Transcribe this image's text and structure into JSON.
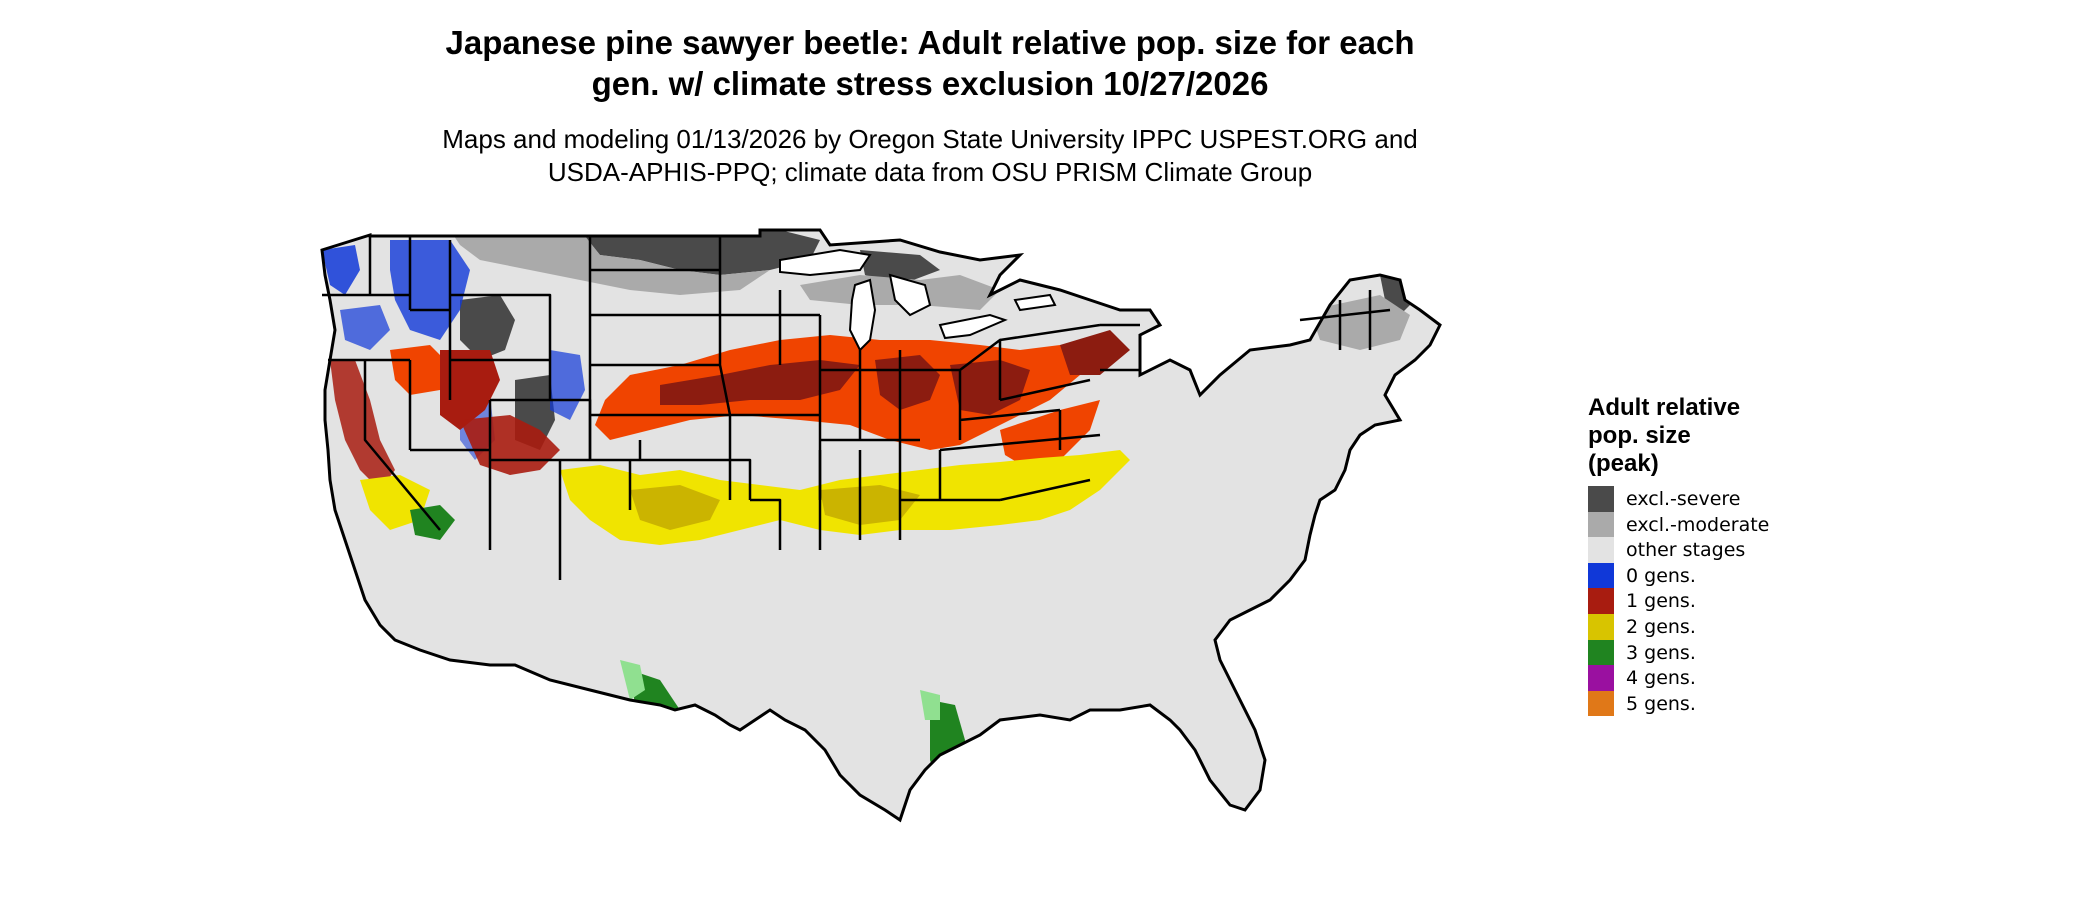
{
  "title": {
    "line1": "Japanese pine sawyer beetle: Adult relative pop. size for each",
    "line2": "gen. w/ climate stress exclusion 10/27/2026"
  },
  "subtitle": {
    "line1": "Maps and modeling 01/13/2026 by Oregon State University IPPC USPEST.ORG and",
    "line2": "USDA-APHIS-PPQ; climate data from OSU PRISM Climate Group"
  },
  "legend": {
    "title_lines": [
      "Adult relative",
      "pop. size",
      "(peak)"
    ],
    "items": [
      {
        "label": "excl.-severe",
        "color": "#4a4a4a"
      },
      {
        "label": "excl.-moderate",
        "color": "#aaaaaa"
      },
      {
        "label": "other stages",
        "color": "#e3e3e3"
      },
      {
        "label": "0 gens.",
        "color": "#1038d8"
      },
      {
        "label": "1 gens.",
        "color": "#a81c10"
      },
      {
        "label": "2 gens.",
        "color": "#d8c400"
      },
      {
        "label": "3 gens.",
        "color": "#208420"
      },
      {
        "label": "4 gens.",
        "color": "#9a10a0"
      },
      {
        "label": "5 gens.",
        "color": "#e07818"
      }
    ]
  },
  "map_colors": {
    "severe": "#4a4a4a",
    "moderate": "#aaaaaa",
    "other": "#e3e3e3",
    "gen0": "#1038d8",
    "gen1_dark": "#8c1c10",
    "gen1_bright": "#f04400",
    "gen2": "#f0e400",
    "gen2_dark": "#cbb400",
    "gen3": "#208420",
    "gen3_light": "#90e090",
    "water": "#ffffff",
    "border": "#000000"
  }
}
